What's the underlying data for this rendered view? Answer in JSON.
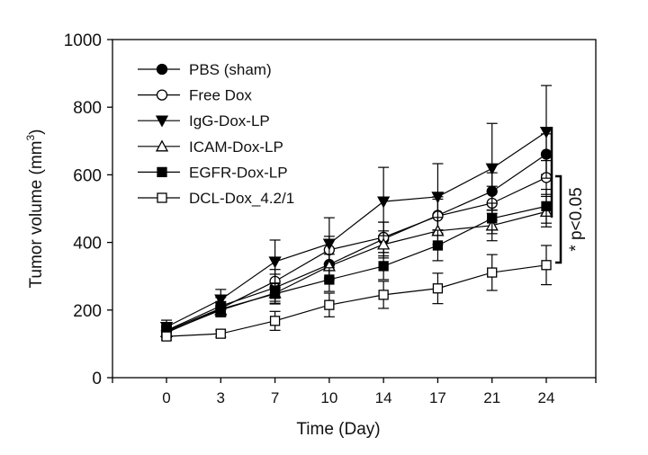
{
  "chart_data": {
    "type": "line",
    "xlabel": "Time (Day)",
    "ylabel": "Tumor volume (mm",
    "ylabel_superscript": "3",
    "ylabel_close": ")",
    "categories": [
      "0",
      "3",
      "7",
      "10",
      "14",
      "17",
      "21",
      "24"
    ],
    "ylim": [
      0,
      1000
    ],
    "yticks": [
      "0",
      "200",
      "400",
      "600",
      "800",
      "1000"
    ],
    "grid": false,
    "legend_placement": "top-left",
    "series": [
      {
        "name": "PBS (sham)",
        "marker": "circle-filled",
        "values": [
          140,
          212,
          266,
          335,
          410,
          480,
          551,
          661
        ],
        "errors": [
          15,
          25,
          40,
          45,
          50,
          55,
          55,
          60
        ]
      },
      {
        "name": "Free Dox",
        "marker": "circle-open",
        "values": [
          138,
          205,
          285,
          378,
          415,
          478,
          516,
          592
        ],
        "errors": [
          15,
          20,
          35,
          40,
          45,
          50,
          50,
          50
        ]
      },
      {
        "name": "IgG-Dox-LP",
        "marker": "triangle-down-filled",
        "values": [
          150,
          231,
          343,
          396,
          521,
          535,
          619,
          727
        ],
        "errors": [
          20,
          30,
          64,
          77,
          101,
          98,
          133,
          137
        ]
      },
      {
        "name": "ICAM-Dox-LP",
        "marker": "triangle-up-open",
        "values": [
          135,
          200,
          250,
          330,
          394,
          434,
          450,
          491
        ],
        "errors": [
          15,
          20,
          30,
          35,
          40,
          40,
          45,
          45
        ]
      },
      {
        "name": "EGFR-Dox-LP",
        "marker": "square-filled",
        "values": [
          133,
          203,
          248,
          290,
          330,
          391,
          471,
          507
        ],
        "errors": [
          15,
          20,
          30,
          35,
          40,
          45,
          45,
          50
        ]
      },
      {
        "name": "DCL-Dox_4.2/1",
        "marker": "square-open",
        "values": [
          122,
          130,
          168,
          215,
          245,
          264,
          311,
          333
        ],
        "errors": [
          10,
          10,
          28,
          35,
          40,
          45,
          53,
          58
        ]
      }
    ],
    "annotation": "* p<0.05"
  }
}
